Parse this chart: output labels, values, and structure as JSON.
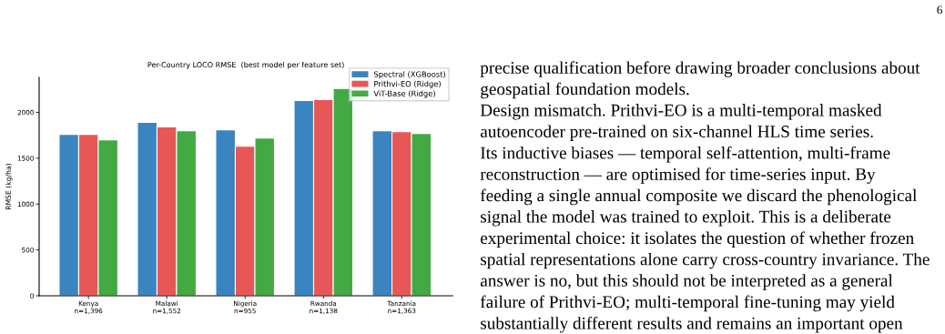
{
  "chart_data": [
    {
      "type": "bar",
      "title": "Per-Country LOCO RMSE  (best model per feature set)",
      "ylabel": "RMSE (kg/ha)",
      "categories": [
        "Kenya\nn=1,396",
        "Malawi\nn=1,552",
        "Nigeria\nn=955",
        "Rwanda\nn=1,138",
        "Tanzania\nn=1,363"
      ],
      "series": [
        {
          "name": "Spectral (XGBoost)",
          "color": "#3a84bf",
          "values": [
            1760,
            1890,
            1810,
            2130,
            1800
          ]
        },
        {
          "name": "Prithvi-EO (Ridge)",
          "color": "#e85757",
          "values": [
            1760,
            1840,
            1630,
            2140,
            1790
          ]
        },
        {
          "name": "ViT-Base (Ridge)",
          "color": "#43aa43",
          "values": [
            1700,
            1800,
            1720,
            2260,
            1770
          ]
        }
      ],
      "ylim": [
        0,
        2380
      ],
      "yticks": [
        0,
        500,
        1000,
        1500,
        2000
      ],
      "grid": false,
      "legend": "top right"
    },
    {
      "type": "other",
      "annotations": [
        "6",
        "precise qualification before drawing broader conclusions about",
        "geospatial foundation models.",
        "Design mismatch. Prithvi-EO is a multi-temporal masked",
        "autoencoder pre-trained on six-channel HLS time series.",
        "Its inductive biases — temporal self-attention, multi-frame",
        "reconstruction — are optimised for time-series input. By",
        "feeding a single annual composite we discard the phenological",
        "signal the model was trained to exploit. This is a deliberate",
        "experimental choice: it isolates the question of whether frozen",
        "spatial representations alone carry cross-country invariance. The",
        "answer is no, but this should not be interpreted as a general",
        "failure of Prithvi-EO; multi-temporal fine-tuning may yield",
        "substantially different results and remains an important open"
      ]
    }
  ]
}
